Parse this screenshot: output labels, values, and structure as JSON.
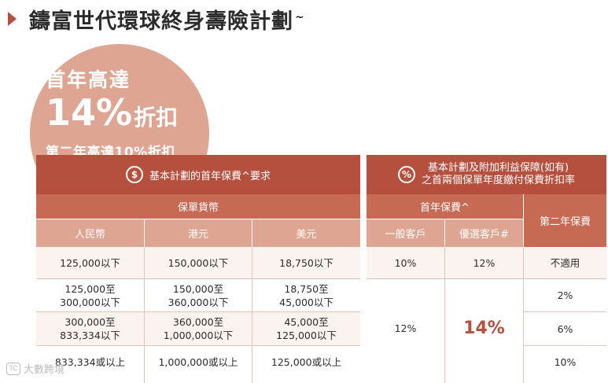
{
  "title": {
    "text": "鑄富世代環球終身壽險計劃",
    "sup": "~"
  },
  "promo": {
    "line1": "首年高達",
    "big": "14%",
    "big_suffix": "折扣",
    "line3": "第二年高達10%折扣"
  },
  "left": {
    "header": {
      "icon": "$",
      "text": "基本計劃的首年保費^要求"
    },
    "sub_header": "保單貨幣",
    "columns": [
      "人民幣",
      "港元",
      "美元"
    ],
    "rows": [
      [
        "125,000以下",
        "150,000以下",
        "18,750以下"
      ],
      [
        "125,000至\n300,000以下",
        "150,000至\n360,000以下",
        "18,750至\n45,000以下"
      ],
      [
        "300,000至\n833,334以下",
        "360,000至\n1,000,000以下",
        "45,000至\n125,000以下"
      ],
      [
        "833,334或以上",
        "1,000,000或以上",
        "125,000或以上"
      ]
    ]
  },
  "right": {
    "header": {
      "icon": "%",
      "line1": "基本計劃及附加利益保障(如有)",
      "line2": "之首兩個保單年度繳付保費折扣率"
    },
    "first_year": "首年保費^",
    "second_year": "第二年保費",
    "col_general": "一般客戶",
    "col_preferred": "優選客戶#",
    "row1": {
      "general": "10%",
      "preferred": "12%",
      "second": "不適用"
    },
    "merged": {
      "general": "12%",
      "preferred": "14%"
    },
    "second_values": [
      "2%",
      "6%",
      "10%"
    ]
  },
  "watermark": {
    "icon": "TC",
    "text": "大數跨境"
  }
}
